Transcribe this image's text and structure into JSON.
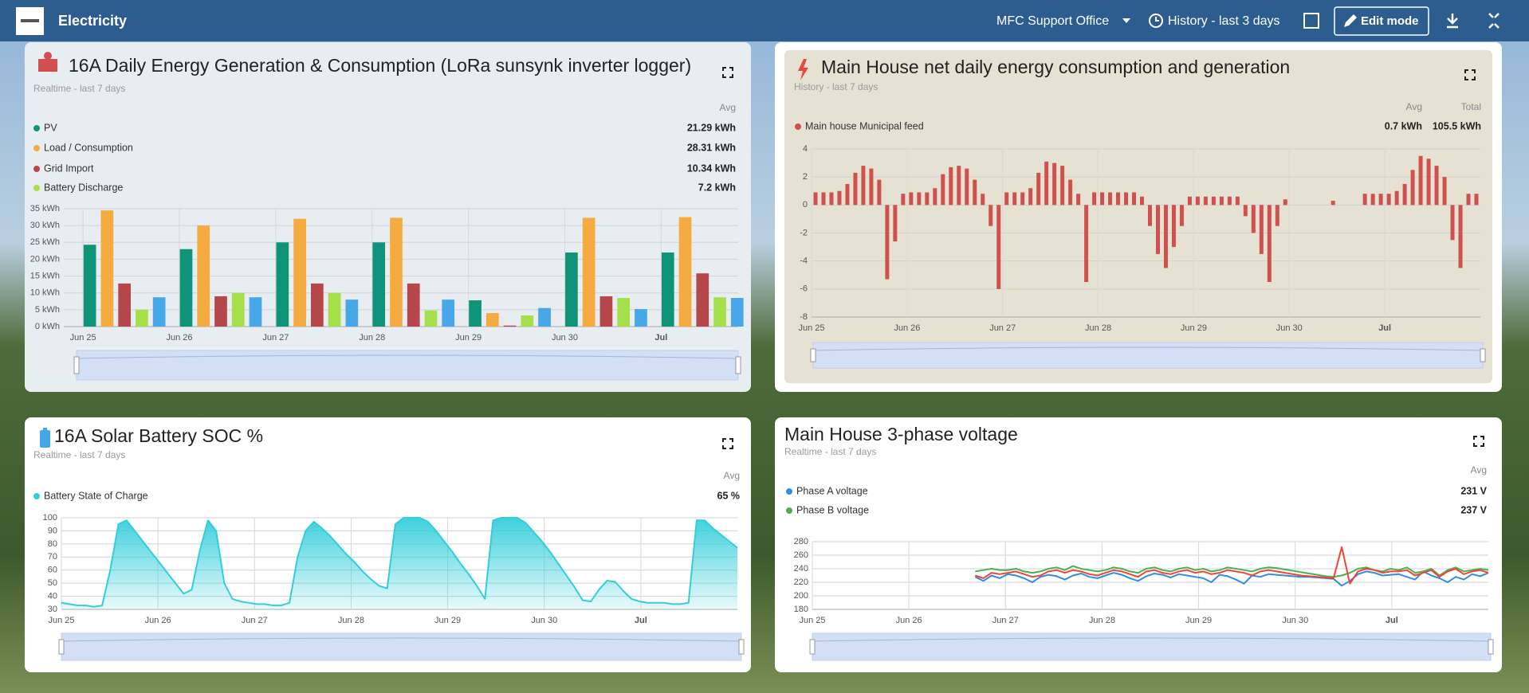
{
  "header": {
    "title": "Electricity",
    "location": "MFC Support Office",
    "history": "History - last 3 days",
    "edit": "Edit mode"
  },
  "widgets": [
    {
      "title": "16A Daily Energy Generation & Consumption (LoRa sunsynk inverter logger)",
      "subtitle": "Realtime - last 7 days",
      "avg_header": "Avg",
      "chart": {
        "type": "bar",
        "categories": [
          "Jun 25",
          "Jun 26",
          "Jun 27",
          "Jun 28",
          "Jun 29",
          "Jun 30",
          "Jul"
        ],
        "series": [
          {
            "name": "PV",
            "color": "#0f9479",
            "values": [
              24.3,
              23,
              25,
              25,
              7.8,
              22,
              22
            ],
            "avg": 21.29,
            "avg_label": "21.29 kWh"
          },
          {
            "name": "Load / Consumption",
            "color": "#f5ab3f",
            "values": [
              34.5,
              30,
              32,
              32.3,
              4,
              32.3,
              32.5
            ],
            "avg": 28.31,
            "avg_label": "28.31 kWh"
          },
          {
            "name": "Grid Import",
            "color": "#b5474b",
            "values": [
              12.8,
              9,
              12.8,
              12.8,
              0.3,
              9,
              15.8
            ],
            "avg": 10.34,
            "avg_label": "10.34 kWh"
          },
          {
            "name": "Battery Discharge",
            "color": "#a5e04b",
            "values": [
              5,
              10,
              10,
              4.8,
              3.3,
              8.5,
              8.7
            ],
            "avg": 7.2,
            "avg_label": "7.2 kWh"
          },
          {
            "color": "#47a7e8",
            "values": [
              8.7,
              8.7,
              8,
              8,
              5.5,
              5.2,
              8.5
            ]
          }
        ],
        "ylim": [
          0,
          35
        ],
        "yticks": [
          {
            "value": 0,
            "label": "0 kWh"
          },
          {
            "value": 5,
            "label": "5 kWh"
          },
          {
            "value": 10,
            "label": "10 kWh"
          },
          {
            "value": 15,
            "label": "15 kWh"
          },
          {
            "value": 20,
            "label": "20 kWh"
          },
          {
            "value": 25,
            "label": "25 kWh"
          },
          {
            "value": 30,
            "label": "30 kWh"
          },
          {
            "value": 35,
            "label": "35 kWh"
          }
        ],
        "grid": true
      }
    },
    {
      "title": "Main House net daily energy consumption and generation",
      "subtitle": "History - last 7 days",
      "avg_header": "Avg",
      "total_header": "Total",
      "chart": {
        "type": "bar",
        "categories": [
          "Jun 25",
          null,
          null,
          null,
          null,
          null,
          null,
          null,
          null,
          null,
          null,
          null,
          "Jun 26",
          null,
          null,
          null,
          null,
          null,
          null,
          null,
          null,
          null,
          null,
          null,
          "Jun 27",
          null,
          null,
          null,
          null,
          null,
          null,
          null,
          null,
          null,
          null,
          null,
          "Jun 28",
          null,
          null,
          null,
          null,
          null,
          null,
          null,
          null,
          null,
          null,
          null,
          "Jun 29",
          null,
          null,
          null,
          null,
          null,
          null,
          null,
          null,
          null,
          null,
          null,
          "Jun 30",
          null,
          null,
          null,
          null,
          null,
          null,
          null,
          null,
          null,
          null,
          null,
          "Jul",
          null,
          null,
          null,
          null,
          null,
          null,
          null,
          null,
          null,
          null,
          null
        ],
        "series": [
          {
            "name": "Main house Municipal feed",
            "color": "#d0504d",
            "values": [
              0.9,
              0.9,
              0.9,
              1,
              1.5,
              2.3,
              2.8,
              2.6,
              1.8,
              -5.3,
              -2.6,
              0.8,
              0.9,
              0.9,
              0.9,
              1.2,
              2.2,
              2.7,
              2.8,
              2.6,
              1.8,
              0.8,
              -1.5,
              -6,
              0.9,
              0.9,
              0.9,
              1.2,
              2.3,
              3.1,
              3,
              2.8,
              1.8,
              0.8,
              -5.5,
              0.9,
              0.9,
              0.9,
              0.9,
              0.9,
              0.9,
              0.6,
              -1.5,
              -3.5,
              -4.5,
              -3,
              -1.5,
              0.6,
              0.6,
              0.6,
              0.6,
              0.6,
              0.6,
              0.6,
              -0.8,
              -2,
              -3.5,
              -5.5,
              -1.5,
              0.4,
              null,
              null,
              null,
              null,
              null,
              0.3,
              null,
              null,
              null,
              0.8,
              0.8,
              0.8,
              0.8,
              1,
              1.5,
              2.5,
              3.5,
              3.3,
              2.8,
              2,
              -2.5,
              -4.5,
              0.8,
              0.8
            ],
            "avg": 0.7,
            "avg_label": "0.7 kWh",
            "total": 105.5,
            "total_label": "105.5 kWh"
          }
        ],
        "ylim": [
          -8,
          4
        ],
        "yticks": [
          -8,
          -6,
          -4,
          -2,
          0,
          2,
          4
        ],
        "grid": true
      }
    },
    {
      "title": "16A Solar Battery SOC %",
      "subtitle": "Realtime - last 7 days",
      "avg_header": "Avg",
      "chart": {
        "type": "area",
        "categories": [
          "Jun 25",
          null,
          null,
          null,
          null,
          null,
          null,
          null,
          null,
          null,
          null,
          null,
          "Jun 26",
          null,
          null,
          null,
          null,
          null,
          null,
          null,
          null,
          null,
          null,
          null,
          "Jun 27",
          null,
          null,
          null,
          null,
          null,
          null,
          null,
          null,
          null,
          null,
          null,
          "Jun 28",
          null,
          null,
          null,
          null,
          null,
          null,
          null,
          null,
          null,
          null,
          null,
          "Jun 29",
          null,
          null,
          null,
          null,
          null,
          null,
          null,
          null,
          null,
          null,
          null,
          "Jun 30",
          null,
          null,
          null,
          null,
          null,
          null,
          null,
          null,
          null,
          null,
          null,
          "Jul",
          null,
          null,
          null,
          null,
          null,
          null,
          null,
          null,
          null,
          null,
          null
        ],
        "series": [
          {
            "name": "Battery State of Charge",
            "color": "#33cedb",
            "values": [
              35,
              34,
              33,
              33,
              32,
              33,
              60,
              95,
              98,
              90,
              82,
              74,
              66,
              58,
              50,
              42,
              45,
              75,
              98,
              90,
              50,
              38,
              36,
              35,
              34,
              34,
              33,
              33,
              35,
              70,
              90,
              97,
              92,
              86,
              79,
              72,
              66,
              59,
              53,
              48,
              46,
              95,
              100,
              100,
              100,
              97,
              90,
              82,
              74,
              65,
              57,
              48,
              38,
              98,
              100,
              100,
              100,
              96,
              89,
              82,
              74,
              65,
              56,
              47,
              37,
              36,
              45,
              52,
              51,
              44,
              38,
              36,
              35,
              35,
              35,
              34,
              34,
              35,
              98,
              98,
              92,
              87,
              82,
              77
            ],
            "avg": 65,
            "avg_label": "65 %"
          }
        ],
        "ylim": [
          30,
          100
        ],
        "yticks": [
          30,
          40,
          50,
          60,
          70,
          80,
          90,
          100
        ],
        "grid": true
      }
    },
    {
      "title": "Main House 3-phase voltage",
      "subtitle": "Realtime - last 7 days",
      "avg_header": "Avg",
      "chart": {
        "type": "line",
        "categories": [
          "Jun 25",
          null,
          null,
          null,
          null,
          null,
          null,
          null,
          null,
          null,
          null,
          null,
          "Jun 26",
          null,
          null,
          null,
          null,
          null,
          null,
          null,
          null,
          null,
          null,
          null,
          "Jun 27",
          null,
          null,
          null,
          null,
          null,
          null,
          null,
          null,
          null,
          null,
          null,
          "Jun 28",
          null,
          null,
          null,
          null,
          null,
          null,
          null,
          null,
          null,
          null,
          null,
          "Jun 29",
          null,
          null,
          null,
          null,
          null,
          null,
          null,
          null,
          null,
          null,
          null,
          "Jun 30",
          null,
          null,
          null,
          null,
          null,
          null,
          null,
          null,
          null,
          null,
          null,
          "Jul",
          null,
          null,
          null,
          null,
          null,
          null,
          null,
          null,
          null,
          null,
          null
        ],
        "series": [
          {
            "name": "Phase A voltage",
            "color": "#2f8de4",
            "values": [
              null,
              null,
              null,
              null,
              null,
              null,
              null,
              null,
              null,
              null,
              null,
              null,
              null,
              null,
              null,
              null,
              null,
              null,
              null,
              null,
              228,
              222,
              230,
              226,
              232,
              230,
              226,
              220,
              228,
              231,
              229,
              224,
              230,
              233,
              228,
              226,
              230,
              234,
              231,
              226,
              222,
              229,
              233,
              231,
              227,
              232,
              230,
              228,
              226,
              220,
              231,
              229,
              224,
              218,
              230,
              228,
              232,
              231,
              230,
              229,
              228,
              228,
              227,
              226,
              225,
              215,
              222,
              232,
              236,
              234,
              230,
              231,
              232,
              228,
              224,
              236,
              230,
              226,
              220,
              228,
              224,
              232,
              229,
              234
            ],
            "avg": 231,
            "avg_label": "231 V"
          },
          {
            "name": "Phase B voltage",
            "color": "#4caf50",
            "values": [
              null,
              null,
              null,
              null,
              null,
              null,
              null,
              null,
              null,
              null,
              null,
              null,
              null,
              null,
              null,
              null,
              null,
              null,
              null,
              null,
              236,
              238,
              240,
              238,
              238,
              240,
              236,
              234,
              236,
              240,
              242,
              238,
              244,
              240,
              238,
              236,
              238,
              242,
              240,
              236,
              234,
              240,
              242,
              238,
              236,
              240,
              242,
              238,
              240,
              236,
              238,
              242,
              240,
              238,
              236,
              240,
              242,
              241,
              239,
              237,
              235,
              233,
              231,
              229,
              228,
              230,
              234,
              240,
              242,
              238,
              236,
              240,
              238,
              242,
              234,
              236,
              240,
              230,
              238,
              242,
              236,
              238,
              240,
              238
            ],
            "avg": 237,
            "avg_label": "237 V"
          },
          {
            "color": "#f44336",
            "values": [
              null,
              null,
              null,
              null,
              null,
              null,
              null,
              null,
              null,
              null,
              null,
              null,
              null,
              null,
              null,
              null,
              null,
              null,
              null,
              null,
              230,
              226,
              234,
              232,
              234,
              236,
              232,
              228,
              230,
              236,
              238,
              234,
              238,
              236,
              232,
              230,
              234,
              238,
              236,
              232,
              228,
              236,
              238,
              234,
              232,
              236,
              238,
              234,
              236,
              232,
              234,
              238,
              236,
              234,
              230,
              236,
              238,
              236,
              234,
              232,
              230,
              229,
              228,
              227,
              226,
              272,
              218,
              236,
              240,
              238,
              234,
              236,
              236,
              238,
              230,
              234,
              238,
              228,
              236,
              240,
              232,
              236,
              238,
              234
            ]
          }
        ],
        "ylim": [
          180,
          280
        ],
        "yticks": [
          180,
          200,
          220,
          240,
          260,
          280
        ],
        "grid": true
      }
    }
  ]
}
